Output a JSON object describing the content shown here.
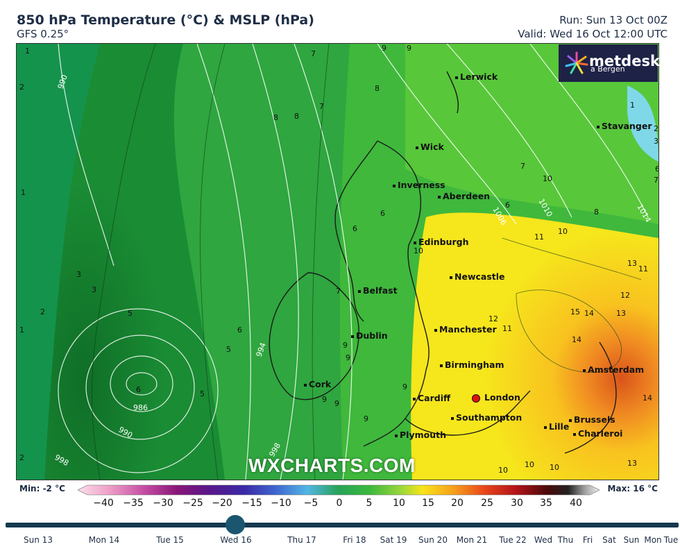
{
  "header": {
    "title": "850 hPa Temperature (°C) & MSLP (hPa)",
    "model": "GFS 0.25°",
    "run": "Run: Sun 13 Oct 00Z",
    "valid": "Valid: Wed 16 Oct 12:00 UTC"
  },
  "logo": {
    "brand": "metdesk",
    "sub": "a Bergen"
  },
  "watermark": "WXCHARTS.COM",
  "cities": {
    "lerwick": "Lerwick",
    "stavanger": "Stavanger",
    "wick": "Wick",
    "inverness": "Inverness",
    "aberdeen": "Aberdeen",
    "edinburgh": "Edinburgh",
    "newcastle": "Newcastle",
    "belfast": "Belfast",
    "dublin": "Dublin",
    "manchester": "Manchester",
    "birmingham": "Birmingham",
    "amsterdam": "Amsterdam",
    "cork": "Cork",
    "cardiff": "Cardiff",
    "london": "London",
    "southampton": "Southampton",
    "brussels": "Brussels",
    "lille": "Lille",
    "charleroi": "Charleroi",
    "plymouth": "Plymouth"
  },
  "map_labels": {
    "isobars": [
      "990",
      "986",
      "990",
      "998",
      "994",
      "998",
      "1006",
      "1010",
      "1014"
    ],
    "temps": [
      "1",
      "2",
      "1",
      "3",
      "3",
      "2",
      "1",
      "5",
      "6",
      "5",
      "5",
      "6",
      "2",
      "7",
      "7",
      "9",
      "9",
      "8",
      "8",
      "8",
      "7",
      "6",
      "6",
      "9",
      "9",
      "10",
      "11",
      "10",
      "11",
      "12",
      "13",
      "14",
      "15",
      "14",
      "13",
      "14",
      "11",
      "12",
      "6",
      "7",
      "8",
      "1",
      "2",
      "3",
      "6",
      "7",
      "10",
      "10",
      "10",
      "13",
      "9",
      "9",
      "9",
      "9",
      "10"
    ]
  },
  "legend": {
    "min_label": "Min: -2 °C",
    "max_label": "Max: 16 °C",
    "ticks": [
      "−40",
      "−35",
      "−30",
      "−25",
      "−20",
      "−15",
      "−10",
      "−5",
      "0",
      "5",
      "10",
      "15",
      "20",
      "25",
      "30",
      "35",
      "40"
    ],
    "colors": [
      "#f7c6d6",
      "#e28bc0",
      "#c04aa0",
      "#8e1a7a",
      "#6a1a86",
      "#4a2aa0",
      "#3a4fc0",
      "#3f7ed8",
      "#4fb0e0",
      "#2faa5a",
      "#5ed04a",
      "#f7e21a",
      "#f7a21a",
      "#ee5a1a",
      "#c01a1a",
      "#7a1010",
      "#1a1a1a",
      "#888888",
      "#e8e8e8"
    ]
  },
  "timeline": {
    "current_day": "Wed 16",
    "days": [
      "Sun 13",
      "Mon 14",
      "Tue 15",
      "Wed 16",
      "Thu 17",
      "Fri 18",
      "Sat 19",
      "Sun 20",
      "Mon 21",
      "Tue 22",
      "Wed",
      "Thu",
      "Fri",
      "Sat",
      "Sun",
      "Mon",
      "Tue"
    ]
  }
}
